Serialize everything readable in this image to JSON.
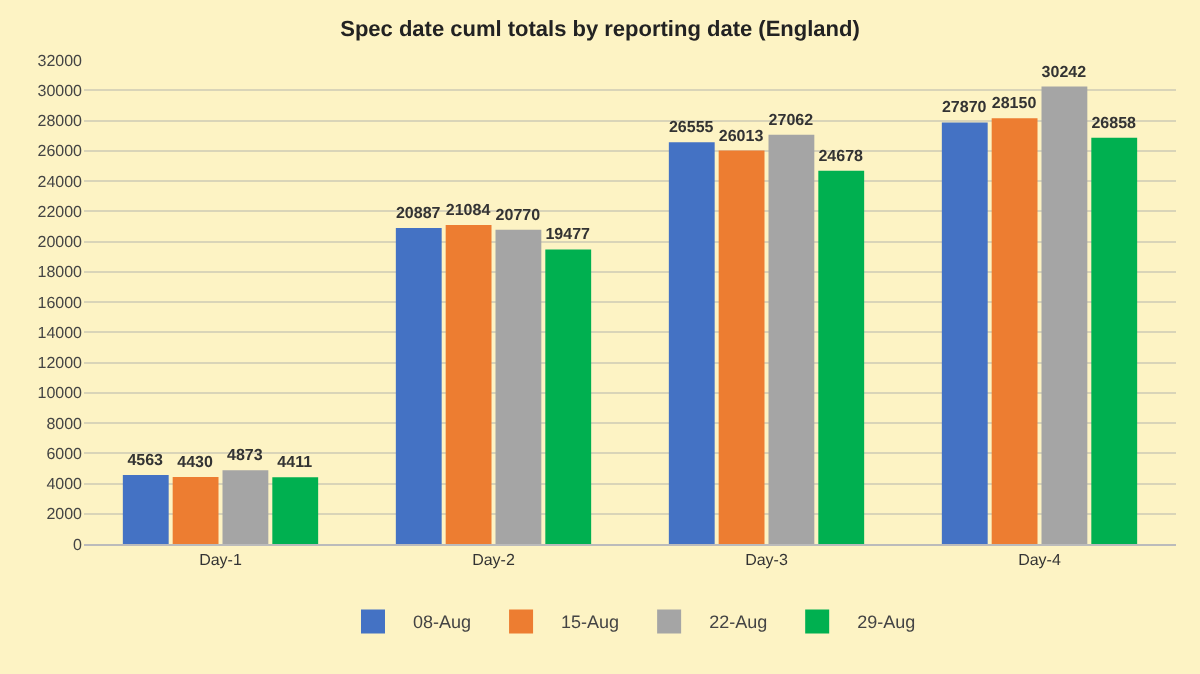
{
  "chart_data": {
    "type": "bar",
    "title": "Spec date cuml totals by reporting date (England)",
    "categories": [
      "Day-1",
      "Day-2",
      "Day-3",
      "Day-4"
    ],
    "series": [
      {
        "name": "08-Aug",
        "color": "#4472c4",
        "values": [
          4563,
          20887,
          26555,
          27870
        ]
      },
      {
        "name": "15-Aug",
        "color": "#ed7d31",
        "values": [
          4430,
          21084,
          26013,
          28150
        ]
      },
      {
        "name": "22-Aug",
        "color": "#a5a5a5",
        "values": [
          4873,
          20770,
          27062,
          30242
        ]
      },
      {
        "name": "29-Aug",
        "color": "#00b050",
        "values": [
          4411,
          19477,
          24678,
          26858
        ]
      }
    ],
    "ylim": [
      0,
      32000
    ],
    "yticks": [
      0,
      2000,
      4000,
      6000,
      8000,
      10000,
      12000,
      14000,
      16000,
      18000,
      20000,
      22000,
      24000,
      26000,
      28000,
      30000,
      32000
    ],
    "grid": "y",
    "legend": "bottom",
    "data_labels": true
  }
}
